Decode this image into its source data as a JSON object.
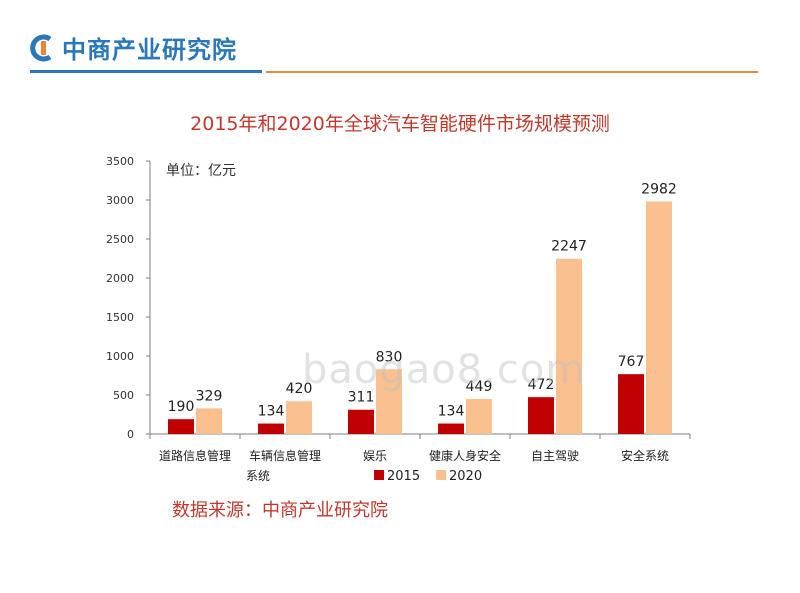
{
  "header": {
    "logo_text": "中商产业研究院"
  },
  "chart_data": {
    "type": "bar",
    "title": "2015年和2020年全球汽车智能硬件市场规模预测",
    "unit_label": "单位：亿元",
    "categories": [
      "道路信息管理",
      "车辆信息管理系统",
      "娱乐",
      "健康人身安全",
      "自主驾驶",
      "安全系统"
    ],
    "category_lines": [
      [
        "道路信息管理"
      ],
      [
        "车辆信息管理",
        "系统"
      ],
      [
        "娱乐"
      ],
      [
        "健康人身安全"
      ],
      [
        "自主驾驶"
      ],
      [
        "安全系统"
      ]
    ],
    "series": [
      {
        "name": "2015",
        "values": [
          190,
          134,
          311,
          134,
          472,
          767
        ],
        "color": "#c00000"
      },
      {
        "name": "2020",
        "values": [
          329,
          420,
          830,
          449,
          2247,
          2982
        ],
        "color": "#fac090"
      }
    ],
    "ylim": [
      0,
      3500
    ],
    "yticks": [
      0,
      500,
      1000,
      1500,
      2000,
      2500,
      3000,
      3500
    ],
    "grid": false,
    "legend_position": "bottom",
    "title_color": "#c0392b"
  },
  "source": "数据来源：中商产业研究院",
  "watermark": "baogao8.com"
}
